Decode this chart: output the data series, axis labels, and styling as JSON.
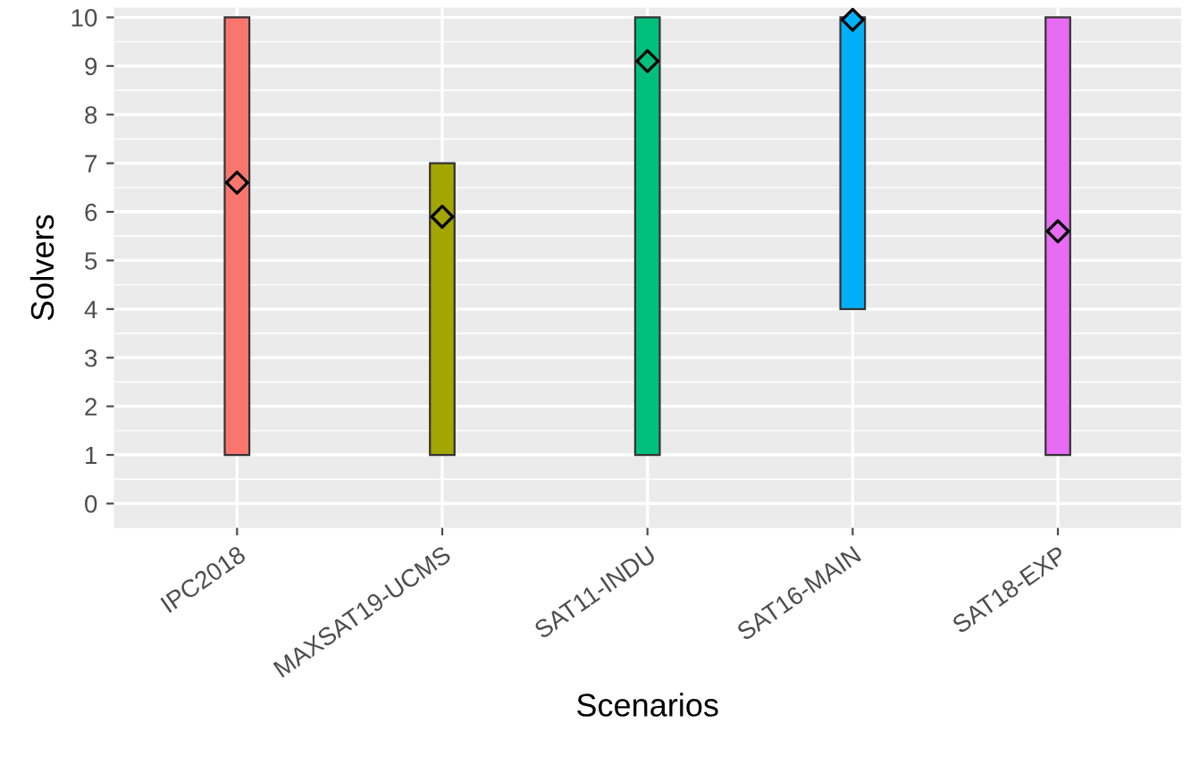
{
  "chart_data": {
    "type": "bar",
    "xlabel": "Scenarios",
    "ylabel": "Solvers",
    "categories": [
      "IPC2018",
      "MAXSAT19-UCMS",
      "SAT11-INDU",
      "SAT16-MAIN",
      "SAT18-EXP"
    ],
    "series": [
      {
        "base": [
          1,
          1,
          1,
          4,
          1
        ],
        "values": [
          9,
          6,
          9,
          6,
          9
        ],
        "colors": [
          "#f8766d",
          "#a3a500",
          "#00bf7d",
          "#00b0f6",
          "#e76bf3"
        ]
      },
      {
        "type": "scatter",
        "x": [
          "IPC2018",
          "MAXSAT19-UCMS",
          "SAT11-INDU",
          "SAT16-MAIN",
          "SAT18-EXP"
        ],
        "values": [
          6.6,
          5.9,
          9.1,
          9.95,
          5.6
        ],
        "colors": [
          "#f8766d",
          "#a3a500",
          "#00bf7d",
          "#00b0f6",
          "#e76bf3"
        ],
        "marker": "diamond"
      }
    ],
    "ylim": [
      -0.5,
      10.2
    ],
    "yticks": [
      0,
      1,
      2,
      3,
      4,
      5,
      6,
      7,
      8,
      9,
      10
    ],
    "grid": true,
    "legend": false
  }
}
